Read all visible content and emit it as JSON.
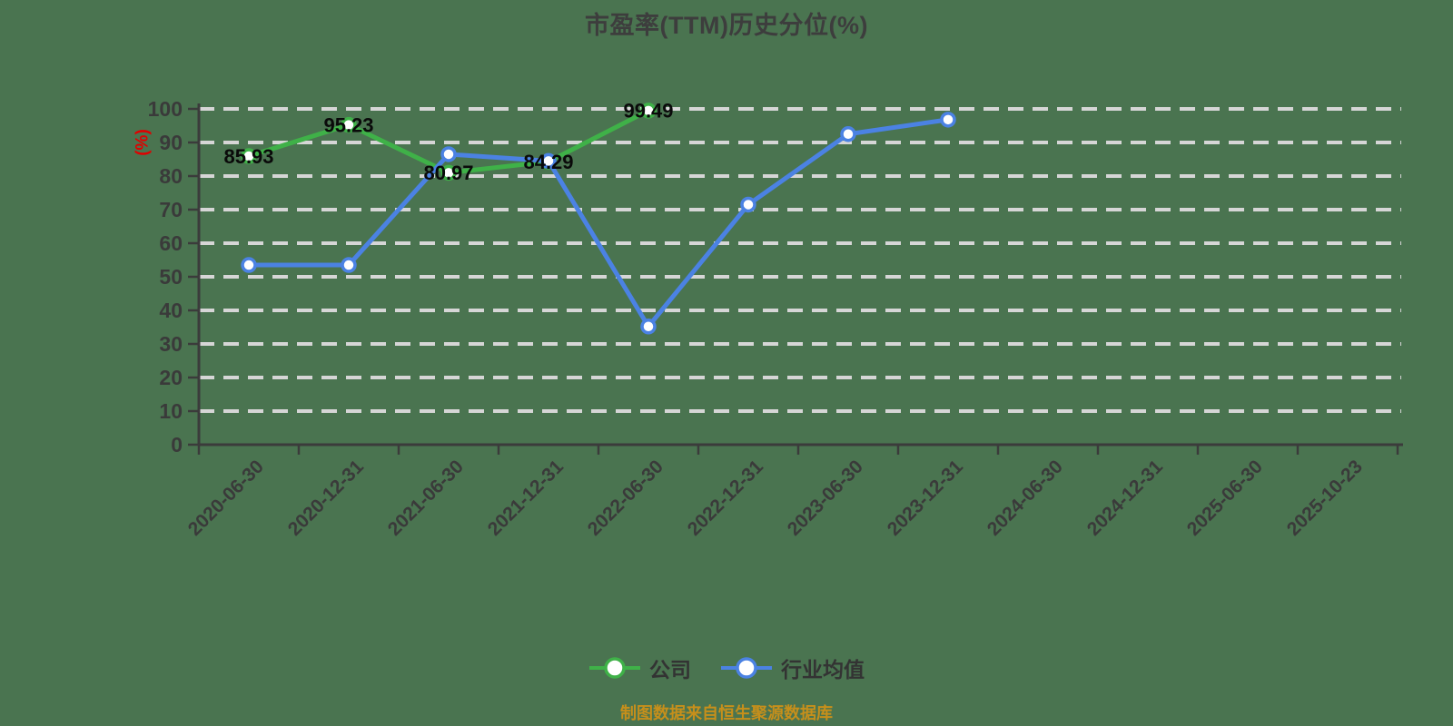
{
  "title": "市盈率(TTM)历史分位(%)",
  "footer": {
    "source_note": "制图数据来自恒生聚源数据库"
  },
  "legend": {
    "items": [
      {
        "label": "公司",
        "color": "#3fb148"
      },
      {
        "label": "行业均值",
        "color": "#4b82e3"
      }
    ]
  },
  "colors": {
    "background": "#4a7450",
    "grid": "#d6d6d6",
    "axis": "#3b3b3b",
    "tick_text": "#3a3a3a",
    "title_text": "#3d3d3d",
    "point_label": "#0a0a0a",
    "y_axis_name": "#e00000",
    "footer_text": "#c68f1b",
    "marker_fill": "#ffffff"
  },
  "chart_data": {
    "type": "line",
    "title": "市盈率(TTM)历史分位(%)",
    "y_axis_name": "(%)",
    "xlabel": "",
    "ylabel": "(%)",
    "ylim": [
      0,
      100
    ],
    "y_ticks": [
      0,
      10,
      20,
      30,
      40,
      50,
      60,
      70,
      80,
      90,
      100
    ],
    "grid": "horizontal-dashed",
    "legend_position": "bottom",
    "categories": [
      "2020-06-30",
      "2020-12-31",
      "2021-06-30",
      "2021-12-31",
      "2022-06-30",
      "2022-12-31",
      "2023-06-30",
      "2023-12-31",
      "2024-06-30",
      "2024-12-31",
      "2025-06-30",
      "2025-10-23"
    ],
    "series": [
      {
        "name": "公司",
        "color": "#3fb148",
        "values": [
          85.93,
          95.23,
          80.97,
          84.29,
          99.49,
          null,
          null,
          null,
          null,
          null,
          null,
          null
        ],
        "point_labels": [
          "85.93",
          "95.23",
          "80.97",
          "84.29",
          "99.49"
        ]
      },
      {
        "name": "行业均值",
        "color": "#4b82e3",
        "values": [
          53.5,
          53.5,
          86.5,
          84.5,
          35.2,
          71.5,
          92.5,
          96.8,
          null,
          null,
          null,
          null
        ],
        "point_labels": []
      }
    ]
  }
}
